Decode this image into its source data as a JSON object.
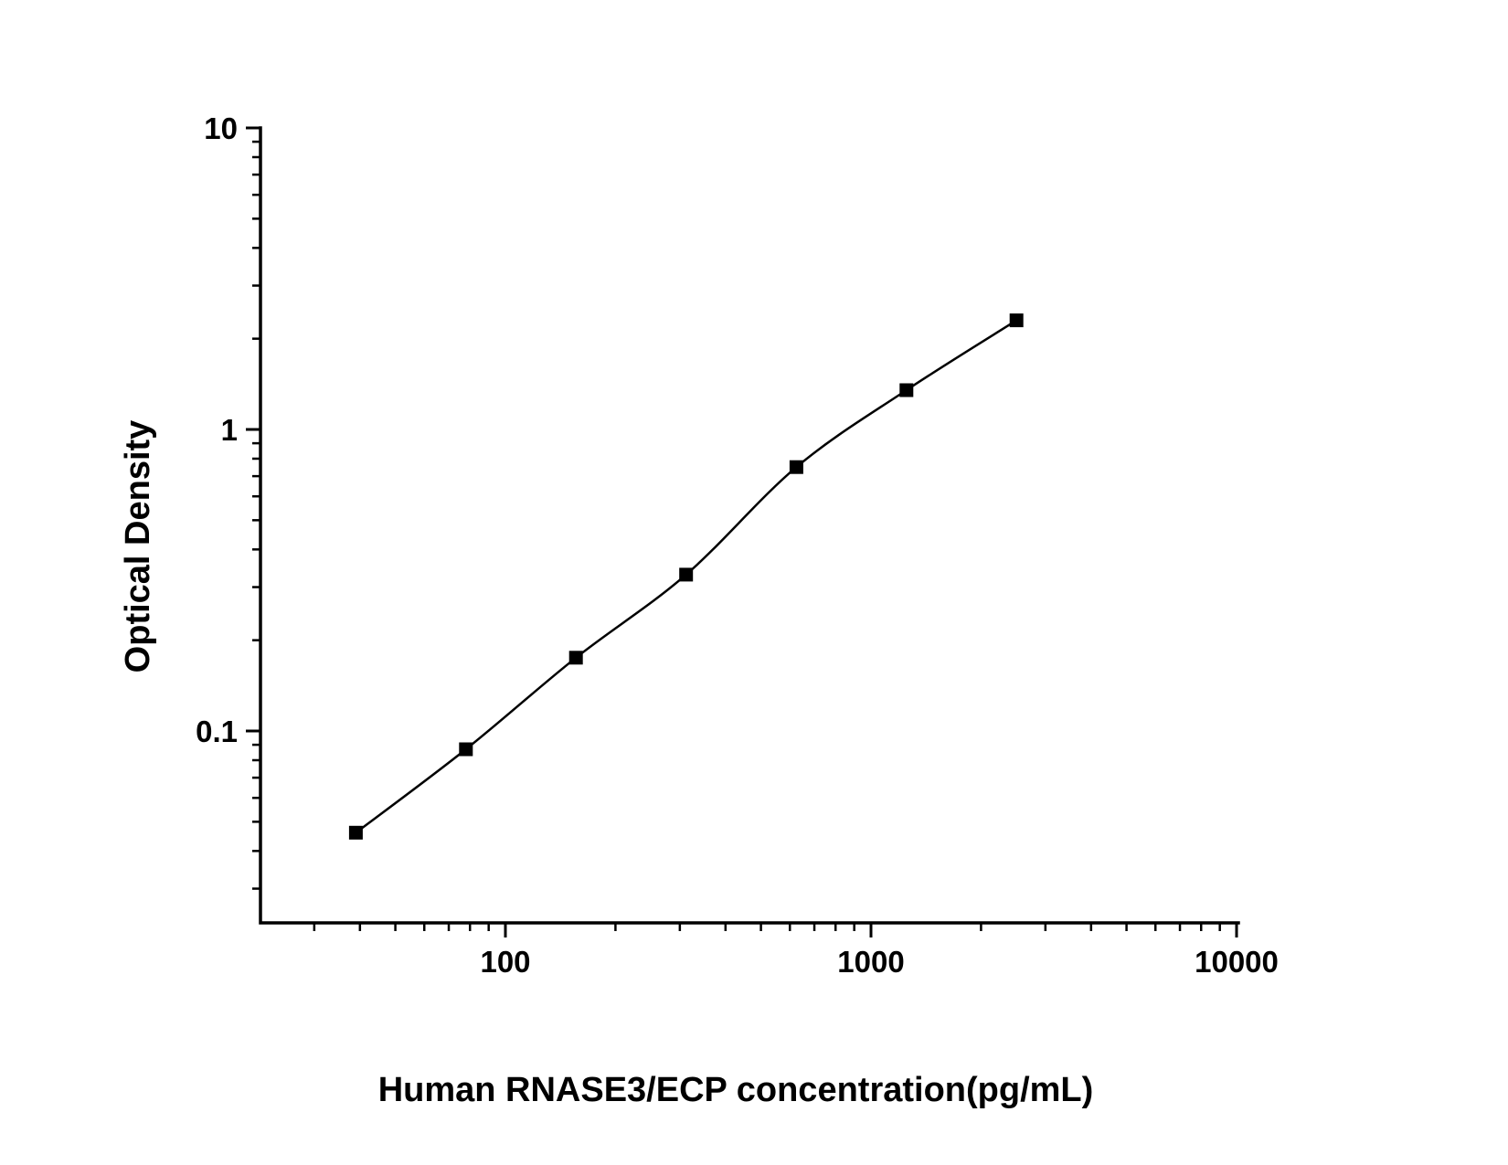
{
  "page": {
    "background": "#ffffff",
    "foreground": "#000000"
  },
  "chart_data": {
    "type": "line",
    "title": "",
    "xlabel": "Human RNASE3/ECP concentration(pg/mL)",
    "ylabel": "Optical Density",
    "x_scale": "log",
    "y_scale": "log",
    "xlim": [
      21,
      10500
    ],
    "ylim": [
      0.023,
      10
    ],
    "grid": false,
    "legend": "none",
    "line_color": "#000000",
    "marker": "square",
    "marker_color": "#000000",
    "x_ticks": [
      {
        "value": 100,
        "label": "100"
      },
      {
        "value": 1000,
        "label": "1000"
      },
      {
        "value": 10000,
        "label": "10000"
      }
    ],
    "y_ticks": [
      {
        "value": 0.1,
        "label": "0.1"
      },
      {
        "value": 1,
        "label": "1"
      },
      {
        "value": 10,
        "label": "10"
      }
    ],
    "points": [
      {
        "x": 39,
        "y": 0.046
      },
      {
        "x": 78,
        "y": 0.087
      },
      {
        "x": 156,
        "y": 0.175
      },
      {
        "x": 312,
        "y": 0.33
      },
      {
        "x": 625,
        "y": 0.75
      },
      {
        "x": 1250,
        "y": 1.35
      },
      {
        "x": 2500,
        "y": 2.3
      }
    ]
  }
}
